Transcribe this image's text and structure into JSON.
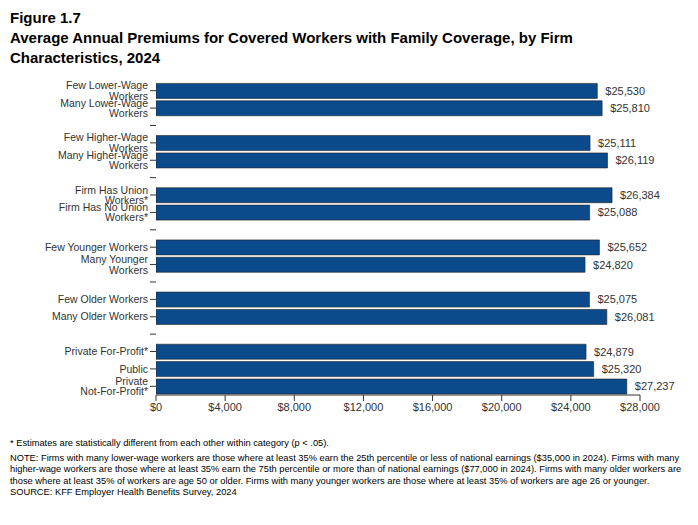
{
  "chart_data": {
    "type": "bar",
    "orientation": "horizontal",
    "subtitle": "Figure 1.7",
    "title": "Average Annual Premiums for Covered Workers with Family Coverage, by Firm Characteristics, 2024",
    "categories": [
      "Few Lower-Wage Workers",
      "Many Lower-Wage Workers",
      null,
      "Few Higher-Wage Workers",
      "Many Higher-Wage Workers",
      null,
      "Firm Has Union Workers*",
      "Firm Has No Union Workers*",
      null,
      "Few Younger Workers",
      "Many Younger Workers",
      null,
      "Few Older Workers",
      "Many Older Workers",
      null,
      "Private For-Profit*",
      "Public",
      "Private Not-For-Profit*"
    ],
    "values": [
      25530,
      25810,
      null,
      25111,
      26119,
      null,
      26384,
      25088,
      null,
      25652,
      24820,
      null,
      25075,
      26081,
      null,
      24879,
      25320,
      27237
    ],
    "value_labels": [
      "$25,530",
      "$25,810",
      null,
      "$25,111",
      "$26,119",
      null,
      "$26,384",
      "$25,088",
      null,
      "$25,652",
      "$24,820",
      null,
      "$25,075",
      "$26,081",
      null,
      "$24,879",
      "$25,320",
      "$27,237"
    ],
    "data_labels": true,
    "color": "#0b4a8b",
    "grid": false,
    "xlim": [
      0,
      28000
    ],
    "xticks": [
      {
        "value": 0,
        "label": "$0"
      },
      {
        "value": 4000,
        "label": "$4,000"
      },
      {
        "value": 8000,
        "label": "$8,000"
      },
      {
        "value": 12000,
        "label": "$12,000"
      },
      {
        "value": 16000,
        "label": "$16,000"
      },
      {
        "value": 20000,
        "label": "$20,000"
      },
      {
        "value": 24000,
        "label": "$24,000"
      },
      {
        "value": 28000,
        "label": "$28,000"
      }
    ],
    "annotations": [
      "* Estimates are statistically different from each other within category (p < .05).",
      "NOTE: Firms with many lower-wage workers are those where at least 35% earn the 25th percentile or less of national earnings ($35,000 in 2024). Firms with many higher-wage workers are those where at least 35% earn the 75th percentile or more than of national earnings ($77,000 in 2024). Firms with many older workers are those where at least 35% of workers are age 50 or older. Firms with many younger workers are those where at least 35% of workers are age 26 or younger.",
      "SOURCE: KFF Employer Health Benefits Survey, 2024"
    ]
  }
}
